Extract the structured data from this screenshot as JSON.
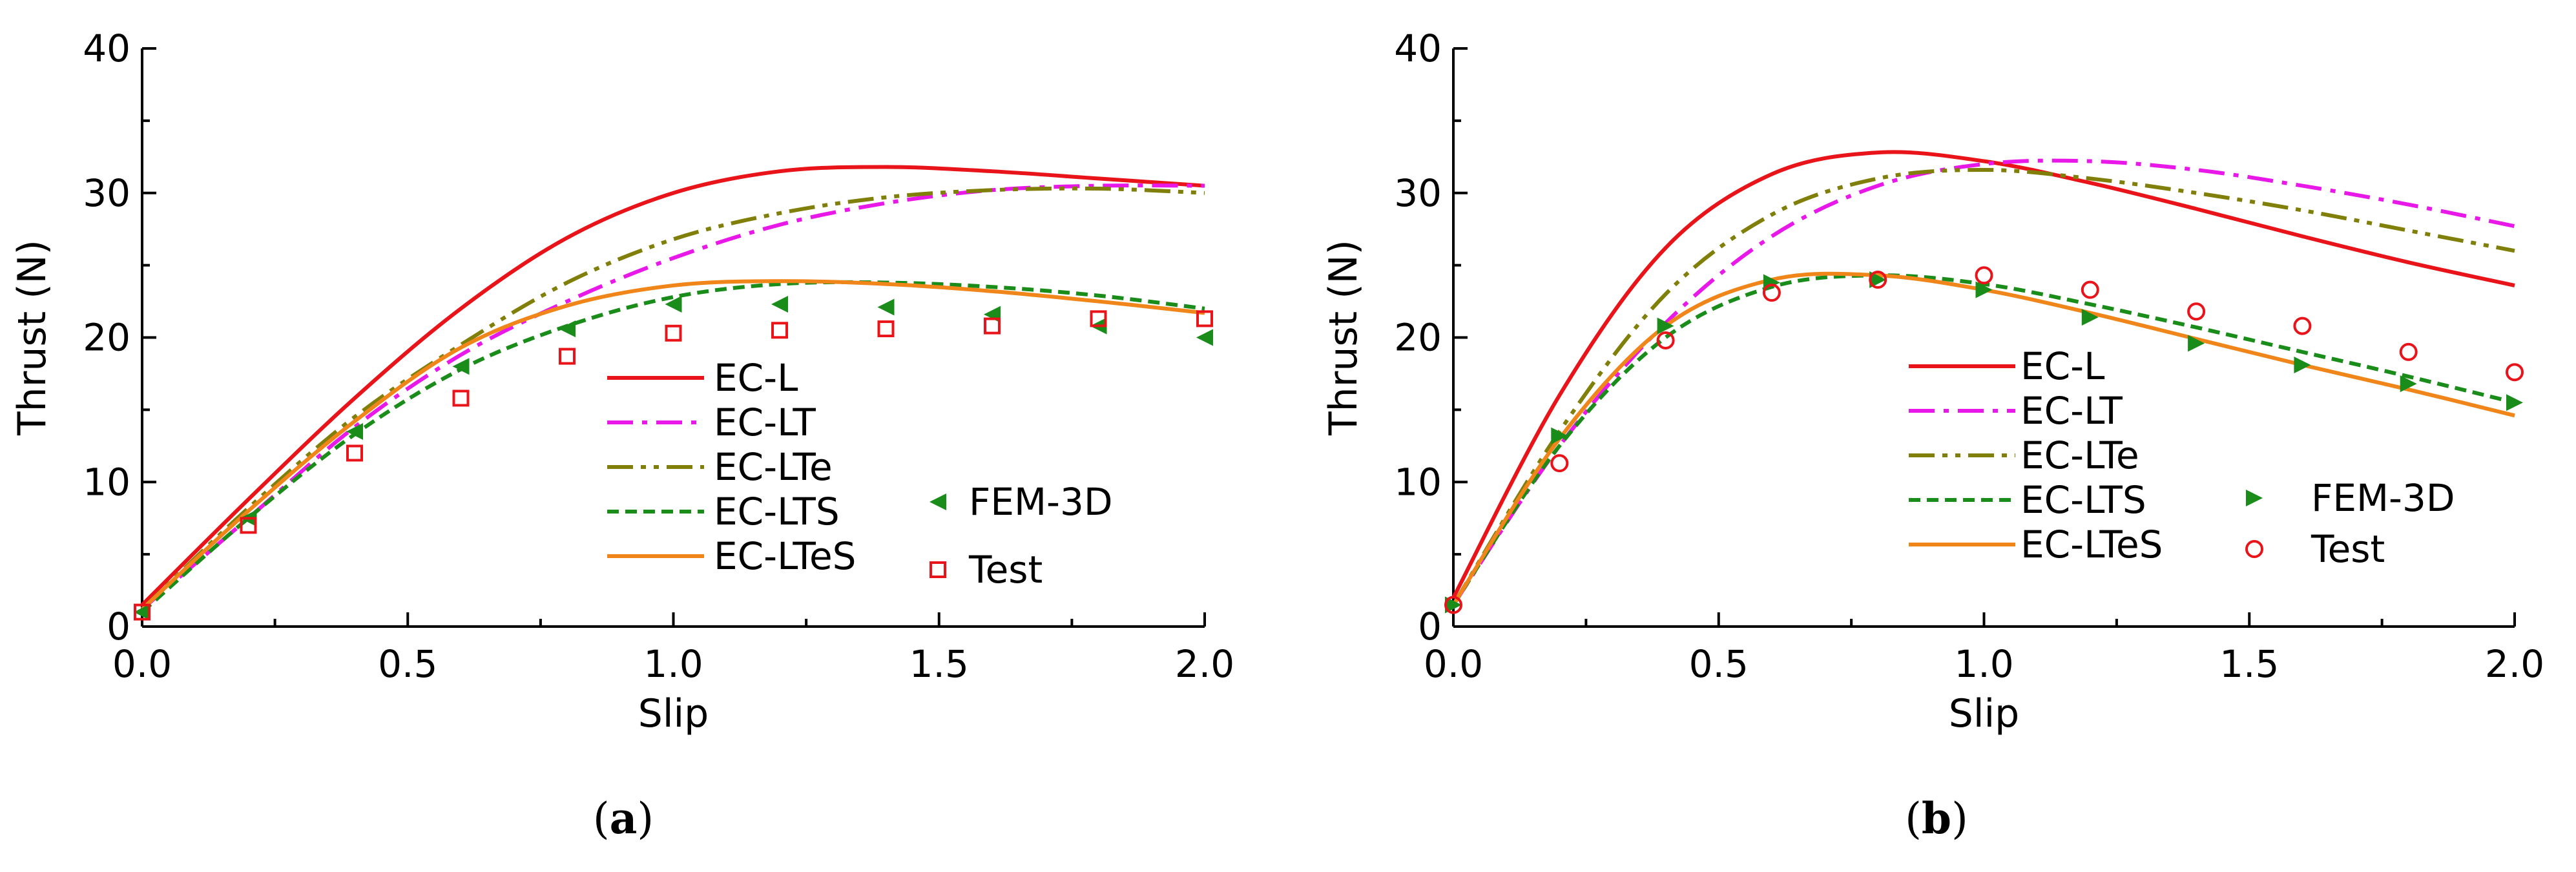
{
  "figure": {
    "panel_labels": [
      "a",
      "b"
    ]
  },
  "chart_data": [
    {
      "type": "line",
      "panel": "a",
      "xlabel": "Slip",
      "ylabel": "Thrust (N)",
      "xlim": [
        0,
        2
      ],
      "ylim": [
        0,
        40
      ],
      "xticks": [
        0,
        0.5,
        1,
        1.5,
        2
      ],
      "xtick_labels": [
        "0.0",
        "0.5",
        "1.0",
        "1.5",
        "2.0"
      ],
      "yticks": [
        0,
        10,
        20,
        30,
        40
      ],
      "ytick_labels": [
        "0",
        "10",
        "20",
        "30",
        "40"
      ],
      "legend_placement": "bottom-center",
      "series": [
        {
          "name": "EC-L",
          "style": "solid",
          "color": "#e8141a",
          "x": [
            0,
            0.2,
            0.4,
            0.6,
            0.8,
            1.0,
            1.2,
            1.4,
            1.6,
            1.8,
            2.0
          ],
          "y": [
            1.5,
            8.8,
            15.8,
            22.0,
            26.9,
            30.0,
            31.5,
            31.8,
            31.5,
            31.0,
            30.5
          ]
        },
        {
          "name": "EC-LT",
          "style": "dashdot",
          "color": "#e818e8",
          "x": [
            0,
            0.2,
            0.4,
            0.6,
            0.8,
            1.0,
            1.2,
            1.4,
            1.6,
            1.8,
            2.0
          ],
          "y": [
            1.2,
            7.5,
            13.8,
            18.8,
            22.5,
            25.5,
            27.8,
            29.3,
            30.2,
            30.5,
            30.5
          ]
        },
        {
          "name": "EC-LTe",
          "style": "dashdotdot",
          "color": "#7f7f0a",
          "x": [
            0,
            0.2,
            0.4,
            0.6,
            0.8,
            1.0,
            1.2,
            1.4,
            1.6,
            1.8,
            2.0
          ],
          "y": [
            1.2,
            8.2,
            14.5,
            19.5,
            23.8,
            26.8,
            28.6,
            29.7,
            30.2,
            30.3,
            30.0
          ]
        },
        {
          "name": "EC-LTS",
          "style": "dashed",
          "color": "#1a8c1a",
          "x": [
            0,
            0.2,
            0.4,
            0.6,
            0.8,
            1.0,
            1.2,
            1.4,
            1.6,
            1.8,
            2.0
          ],
          "y": [
            1.0,
            7.5,
            13.3,
            17.8,
            20.8,
            22.8,
            23.7,
            23.8,
            23.5,
            22.9,
            22.0
          ]
        },
        {
          "name": "EC-LTeS",
          "style": "solid",
          "color": "#f0861a",
          "x": [
            0,
            0.2,
            0.4,
            0.6,
            0.8,
            1.0,
            1.2,
            1.4,
            1.6,
            1.8,
            2.0
          ],
          "y": [
            1.2,
            8.0,
            14.2,
            19.3,
            22.2,
            23.6,
            23.9,
            23.7,
            23.2,
            22.5,
            21.7
          ]
        }
      ],
      "markers": [
        {
          "name": "FEM-3D",
          "marker": "triangle-left",
          "color": "#1a8c1a",
          "x": [
            0,
            0.2,
            0.4,
            0.6,
            0.8,
            1.0,
            1.2,
            1.4,
            1.6,
            1.8,
            2.0
          ],
          "y": [
            1.0,
            7.5,
            13.5,
            18.0,
            20.6,
            22.3,
            22.3,
            22.1,
            21.6,
            20.8,
            20.0
          ]
        },
        {
          "name": "Test",
          "marker": "square-open",
          "color": "#e8141a",
          "x": [
            0,
            0.2,
            0.4,
            0.6,
            0.8,
            1.0,
            1.2,
            1.4,
            1.6,
            1.8,
            2.0
          ],
          "y": [
            1.0,
            7.0,
            12.0,
            15.8,
            18.7,
            20.3,
            20.5,
            20.6,
            20.8,
            21.3,
            21.3
          ]
        }
      ]
    },
    {
      "type": "line",
      "panel": "b",
      "xlabel": "Slip",
      "ylabel": "Thrust (N)",
      "xlim": [
        0,
        2
      ],
      "ylim": [
        0,
        40
      ],
      "xticks": [
        0,
        0.5,
        1,
        1.5,
        2
      ],
      "xtick_labels": [
        "0.0",
        "0.5",
        "1.0",
        "1.5",
        "2.0"
      ],
      "yticks": [
        0,
        10,
        20,
        30,
        40
      ],
      "ytick_labels": [
        "0",
        "10",
        "20",
        "30",
        "40"
      ],
      "legend_placement": "bottom-center",
      "series": [
        {
          "name": "EC-L",
          "style": "solid",
          "color": "#e8141a",
          "x": [
            0,
            0.2,
            0.4,
            0.6,
            0.8,
            1.0,
            1.2,
            1.4,
            1.6,
            1.8,
            2.0
          ],
          "y": [
            2.0,
            16.0,
            26.2,
            31.3,
            32.8,
            32.2,
            30.7,
            28.9,
            27.0,
            25.2,
            23.6
          ]
        },
        {
          "name": "EC-LT",
          "style": "dashdot",
          "color": "#e818e8",
          "x": [
            0,
            0.2,
            0.4,
            0.6,
            0.8,
            1.0,
            1.2,
            1.4,
            1.6,
            1.8,
            2.0
          ],
          "y": [
            1.5,
            12.5,
            21.0,
            27.0,
            30.5,
            32.0,
            32.2,
            31.6,
            30.5,
            29.2,
            27.7
          ]
        },
        {
          "name": "EC-LTe",
          "style": "dashdotdot",
          "color": "#7f7f0a",
          "x": [
            0,
            0.2,
            0.4,
            0.6,
            0.8,
            1.0,
            1.2,
            1.4,
            1.6,
            1.8,
            2.0
          ],
          "y": [
            1.5,
            13.5,
            23.0,
            28.5,
            31.0,
            31.6,
            31.0,
            30.0,
            28.8,
            27.4,
            26.0
          ]
        },
        {
          "name": "EC-LTS",
          "style": "dashed",
          "color": "#1a8c1a",
          "x": [
            0,
            0.2,
            0.4,
            0.6,
            0.8,
            1.0,
            1.2,
            1.4,
            1.6,
            1.8,
            2.0
          ],
          "y": [
            1.5,
            12.5,
            20.0,
            23.5,
            24.3,
            23.7,
            22.3,
            20.7,
            19.0,
            17.3,
            15.5
          ]
        },
        {
          "name": "EC-LTeS",
          "style": "solid",
          "color": "#f0861a",
          "x": [
            0,
            0.2,
            0.4,
            0.6,
            0.8,
            1.0,
            1.2,
            1.4,
            1.6,
            1.8,
            2.0
          ],
          "y": [
            1.5,
            13.0,
            20.8,
            24.0,
            24.3,
            23.3,
            21.7,
            19.9,
            18.1,
            16.4,
            14.6
          ]
        }
      ],
      "markers": [
        {
          "name": "FEM-3D",
          "marker": "triangle-right",
          "color": "#1a8c1a",
          "x": [
            0,
            0.2,
            0.4,
            0.6,
            0.8,
            1.0,
            1.2,
            1.4,
            1.6,
            1.8,
            2.0
          ],
          "y": [
            1.5,
            13.2,
            20.8,
            23.8,
            24.0,
            23.3,
            21.4,
            19.6,
            18.1,
            16.8,
            15.5
          ]
        },
        {
          "name": "Test",
          "marker": "circle-open",
          "color": "#e8141a",
          "x": [
            0,
            0.2,
            0.4,
            0.6,
            0.8,
            1.0,
            1.2,
            1.4,
            1.6,
            1.8,
            2.0
          ],
          "y": [
            1.5,
            11.3,
            19.8,
            23.1,
            24.0,
            24.3,
            23.3,
            21.8,
            20.8,
            19.0,
            17.6
          ]
        }
      ]
    }
  ]
}
